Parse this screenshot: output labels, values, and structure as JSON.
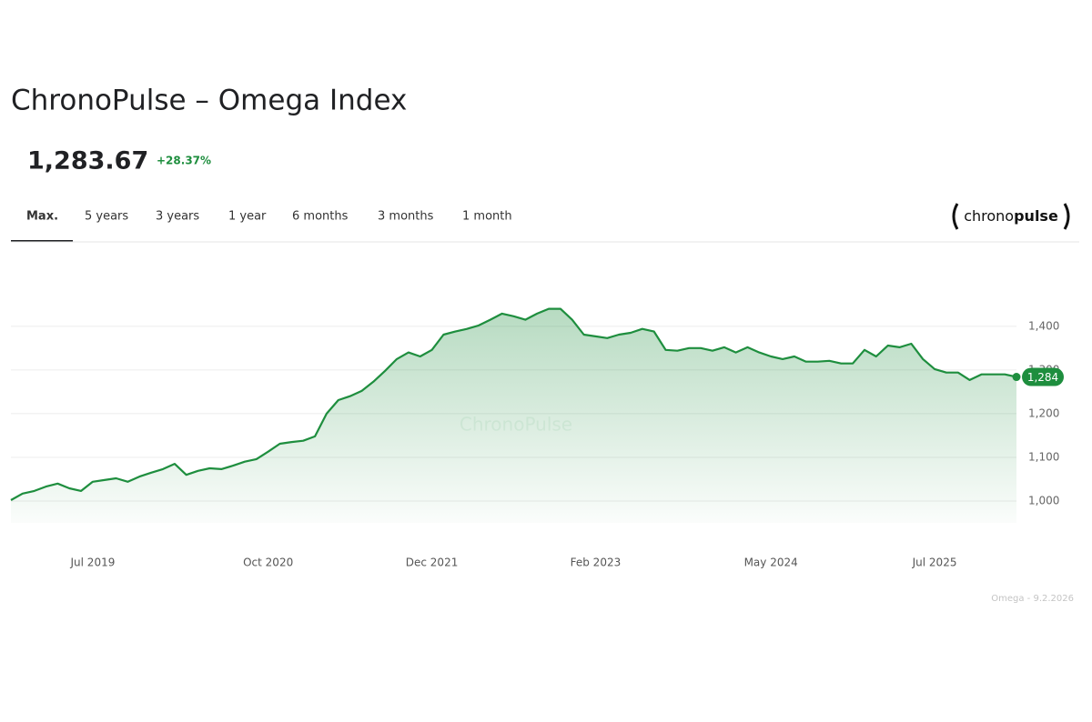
{
  "header": {
    "title": "ChronoPulse – Omega Index",
    "price": "1,283.67",
    "change": "+28.37%"
  },
  "tabs": [
    "Max.",
    "5 years",
    "3 years",
    "1 year",
    "6 months",
    "3 months",
    "1 month"
  ],
  "active_tab": 0,
  "logo": {
    "prefix": "chrono",
    "suffix": "pulse"
  },
  "footer": "Omega - 9.2.2026",
  "chart_data": {
    "type": "line",
    "watermark": "ChronoPulse",
    "x": [
      "Dec 2018",
      "Jan 2019",
      "Feb 2019",
      "Mar 2019",
      "Apr 2019",
      "May 2019",
      "Jun 2019",
      "Jul 2019",
      "Aug 2019",
      "Sep 2019",
      "Oct 2019",
      "Nov 2019",
      "Dec 2019",
      "Jan 2020",
      "Feb 2020",
      "Mar 2020",
      "Apr 2020",
      "May 2020",
      "Jun 2020",
      "Jul 2020",
      "Aug 2020",
      "Sep 2020",
      "Oct 2020",
      "Nov 2020",
      "Dec 2020",
      "Jan 2021",
      "Feb 2021",
      "Mar 2021",
      "Apr 2021",
      "May 2021",
      "Jun 2021",
      "Jul 2021",
      "Aug 2021",
      "Sep 2021",
      "Oct 2021",
      "Nov 2021",
      "Dec 2021",
      "Jan 2022",
      "Feb 2022",
      "Mar 2022",
      "Apr 2022",
      "May 2022",
      "Jun 2022",
      "Jul 2022",
      "Aug 2022",
      "Sep 2022",
      "Oct 2022",
      "Nov 2022",
      "Dec 2022",
      "Jan 2023",
      "Feb 2023",
      "Mar 2023",
      "Apr 2023",
      "May 2023",
      "Jun 2023",
      "Jul 2023",
      "Aug 2023",
      "Sep 2023",
      "Oct 2023",
      "Nov 2023",
      "Dec 2023",
      "Jan 2024",
      "Feb 2024",
      "Mar 2024",
      "Apr 2024",
      "May 2024",
      "Jun 2024",
      "Jul 2024",
      "Aug 2024",
      "Sep 2024",
      "Oct 2024",
      "Nov 2024",
      "Dec 2024",
      "Jan 2025",
      "Feb 2025",
      "Mar 2025",
      "Apr 2025",
      "May 2025",
      "Jun 2025",
      "Jul 2025",
      "Aug 2025",
      "Sep 2025",
      "Oct 2025",
      "Nov 2025",
      "Dec 2025",
      "Jan 2026",
      "Feb 2026"
    ],
    "series": [
      {
        "name": "Omega Index",
        "color": "#1e8e3e",
        "values": [
          1002,
          1017,
          1023,
          1033,
          1040,
          1029,
          1023,
          1044,
          1048,
          1052,
          1044,
          1056,
          1065,
          1073,
          1085,
          1060,
          1069,
          1075,
          1073,
          1081,
          1090,
          1096,
          1113,
          1131,
          1135,
          1138,
          1148,
          1200,
          1231,
          1240,
          1252,
          1273,
          1298,
          1325,
          1340,
          1331,
          1346,
          1381,
          1388,
          1394,
          1402,
          1415,
          1429,
          1423,
          1415,
          1429,
          1440,
          1440,
          1415,
          1381,
          1377,
          1373,
          1381,
          1385,
          1394,
          1388,
          1346,
          1344,
          1350,
          1350,
          1344,
          1352,
          1340,
          1352,
          1340,
          1331,
          1325,
          1331,
          1319,
          1319,
          1321,
          1315,
          1315,
          1346,
          1331,
          1356,
          1352,
          1360,
          1325,
          1302,
          1294,
          1294,
          1277,
          1290,
          1290,
          1290,
          1284
        ],
        "value_labels": [
          null,
          null,
          null,
          null,
          null,
          null,
          null,
          null,
          null,
          null,
          null,
          null,
          null,
          null,
          null,
          null,
          null,
          null,
          null,
          null,
          null,
          null,
          null,
          null,
          null,
          null,
          null,
          null,
          null,
          null,
          null,
          null,
          null,
          null,
          null,
          null,
          null,
          null,
          null,
          null,
          null,
          null,
          null,
          null,
          null,
          null,
          null,
          null,
          null,
          null,
          null,
          null,
          null,
          null,
          null,
          null,
          null,
          null,
          null,
          null,
          null,
          null,
          null,
          null,
          null,
          null,
          null,
          null,
          null,
          null,
          null,
          null,
          null,
          null,
          null,
          null,
          null,
          null,
          null,
          null,
          null,
          null,
          null,
          null,
          null,
          null,
          "1,284"
        ]
      }
    ],
    "xticks": [
      "Jul 2019",
      "Oct 2020",
      "Dec 2021",
      "Feb 2023",
      "May 2024",
      "Jul 2025"
    ],
    "ylim": [
      950,
      1460
    ],
    "yticks": [
      {
        "value": 1000,
        "label": "1,000"
      },
      {
        "value": 1100,
        "label": "1,100"
      },
      {
        "value": 1200,
        "label": "1,200"
      },
      {
        "value": 1300,
        "label": "1,300"
      },
      {
        "value": 1400,
        "label": "1,400"
      }
    ],
    "grid": true
  }
}
